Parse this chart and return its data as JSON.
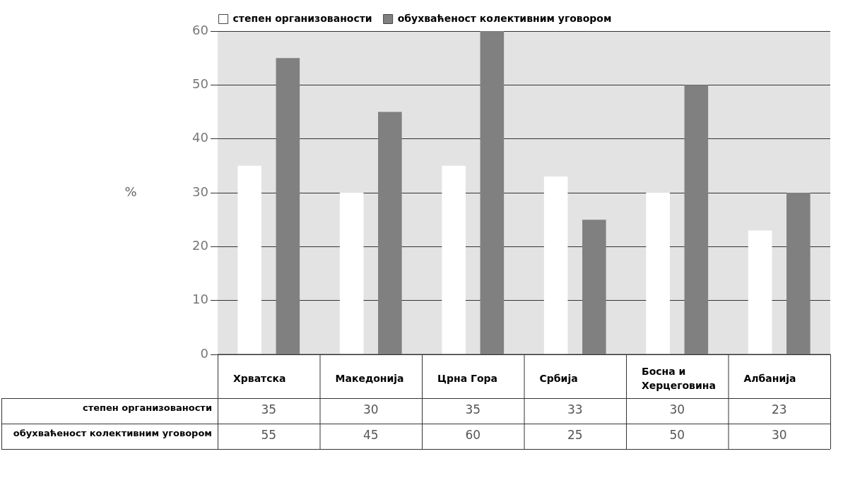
{
  "chart_data": {
    "type": "bar",
    "categories": [
      "Хрватска",
      "Македонија",
      "Црна Гора",
      "Србија",
      "Босна и Херцеговина",
      "Албанија"
    ],
    "series": [
      {
        "name": "степен организованости",
        "color": "#ffffff",
        "values": [
          35,
          30,
          35,
          33,
          30,
          23
        ]
      },
      {
        "name": "обухваћеност колективним уговором",
        "color": "#808080",
        "values": [
          55,
          45,
          60,
          25,
          50,
          30
        ]
      }
    ],
    "ylabel": "%",
    "ylim": [
      0,
      60
    ],
    "yticks": [
      0,
      10,
      20,
      30,
      40,
      50,
      60
    ],
    "grid": "y",
    "legend": "top",
    "data_labels": true
  }
}
